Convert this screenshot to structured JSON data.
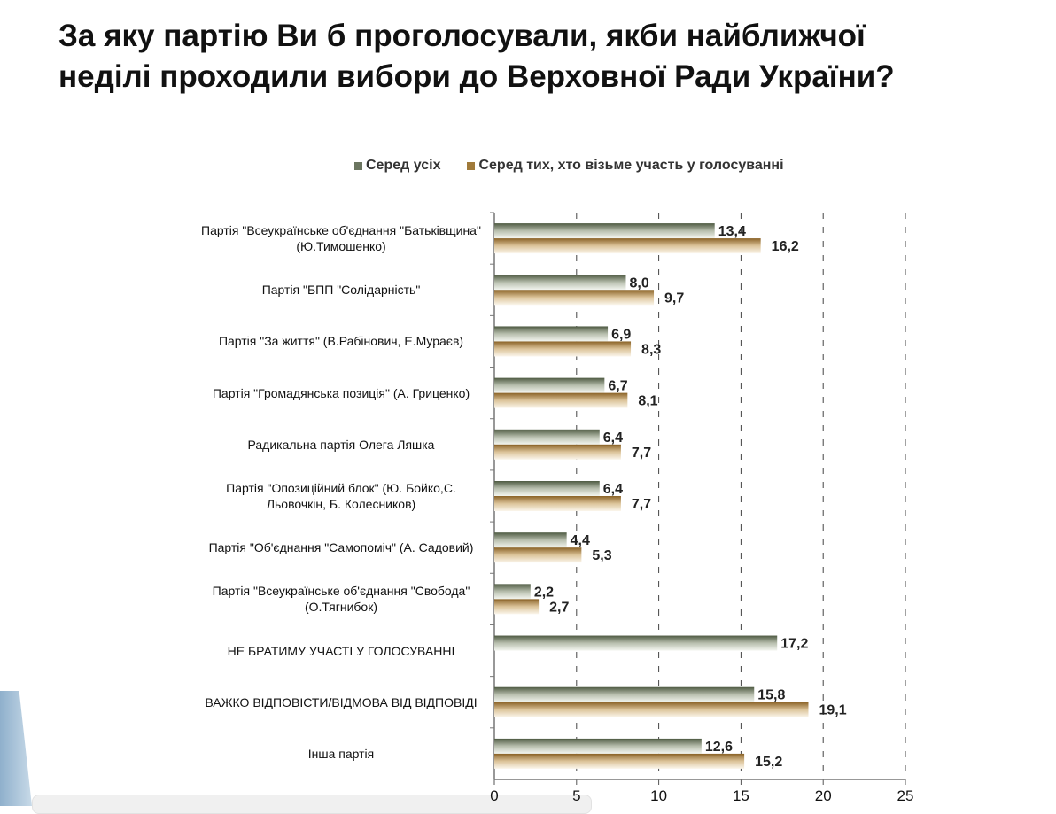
{
  "title": [
    "За яку партію Ви б проголосували, якби найближчої",
    "неділі проходили вибори до Верховної Ради України?"
  ],
  "chart_data": {
    "type": "bar",
    "orientation": "horizontal",
    "title": "За яку партію Ви б проголосували, якби найближчої неділі проходили вибори до Верховної Ради України?",
    "categories": [
      "Партія \"Всеукраїнське об'єднання \"Батьківщина\"(Ю.Тимошенко)",
      "Партія \"БПП \"Солідарність\"",
      "Партія \"За життя\" (В.Рабінович, Е.Мураєв)",
      "Партія \"Громадянська позиція\" (А. Гриценко)",
      "Радикальна партія Олега Ляшка",
      "Партія \"Опозиційний блок\" (Ю. Бойко,С. Льовочкін, Б. Колесников)",
      "Партія \"Об'єднання \"Самопоміч\" (А. Садовий)",
      "Партія \"Всеукраїнське об'єднання \"Свобода\" (О.Тягнибок)",
      "НЕ БРАТИМУ УЧАСТІ У ГОЛОСУВАННІ",
      "ВАЖКО ВІДПОВІСТИ/ВІДМОВА ВІД ВІДПОВІДІ",
      "Інша партія"
    ],
    "series": [
      {
        "name": "Серед усіх",
        "color": "#6b7560",
        "values": [
          13.4,
          8.0,
          6.9,
          6.7,
          6.4,
          6.4,
          4.4,
          2.2,
          17.2,
          15.8,
          12.6
        ],
        "labels": [
          "13,4",
          "8,0",
          "6,9",
          "6,7",
          "6,4",
          "6,4",
          "4,4",
          "2,2",
          "17,2",
          "15,8",
          "12,6"
        ]
      },
      {
        "name": "Серед тих, хто візьме участь у голосуванні",
        "color": "#a07a3a",
        "values": [
          16.2,
          9.7,
          8.3,
          8.1,
          7.7,
          7.7,
          5.3,
          2.7,
          null,
          19.1,
          15.2
        ],
        "labels": [
          "16,2",
          "9,7",
          "8,3",
          "8,1",
          "7,7",
          "7,7",
          "5,3",
          "2,7",
          null,
          "19,1",
          "15,2"
        ]
      }
    ],
    "xlim": [
      0,
      25
    ],
    "xticks": [
      "0",
      "5",
      "10",
      "15",
      "20",
      "25"
    ],
    "grid": "vertical dashed",
    "legend": "top"
  }
}
